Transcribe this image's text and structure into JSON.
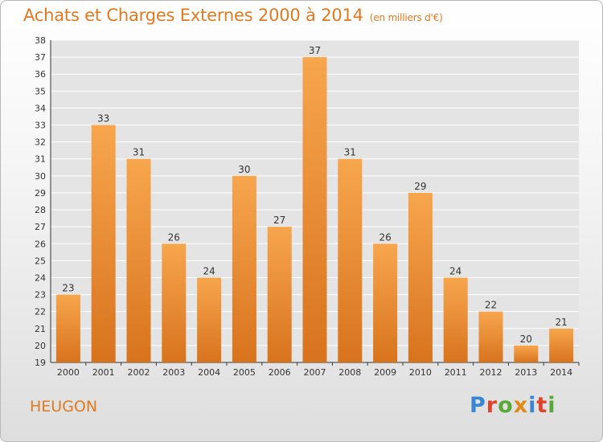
{
  "header": {
    "title": "Achats et Charges Externes 2000 à 2014",
    "subtitle": "(en milliers d'€)"
  },
  "footer": {
    "commune": "HEUGON",
    "logo_text": "Proxiti"
  },
  "colors": {
    "accent": "#e07a20",
    "bar_top": "#f7a64e",
    "bar_bottom": "#d8731d",
    "axis": "#333333",
    "grid": "#ffffff"
  },
  "chart_data": {
    "type": "bar",
    "title": "Achats et Charges Externes 2000 à 2014",
    "subtitle": "(en milliers d'€)",
    "xlabel": "",
    "ylabel": "",
    "categories": [
      "2000",
      "2001",
      "2002",
      "2003",
      "2004",
      "2005",
      "2006",
      "2007",
      "2008",
      "2009",
      "2010",
      "2011",
      "2012",
      "2013",
      "2014"
    ],
    "values": [
      23,
      33,
      31,
      26,
      24,
      30,
      27,
      37,
      31,
      26,
      29,
      24,
      22,
      20,
      21
    ],
    "ylim": [
      19,
      38
    ],
    "yticks": [
      19,
      20,
      21,
      22,
      23,
      24,
      25,
      26,
      27,
      28,
      29,
      30,
      31,
      32,
      33,
      34,
      35,
      36,
      37,
      38
    ],
    "grid": true,
    "data_labels": true
  }
}
